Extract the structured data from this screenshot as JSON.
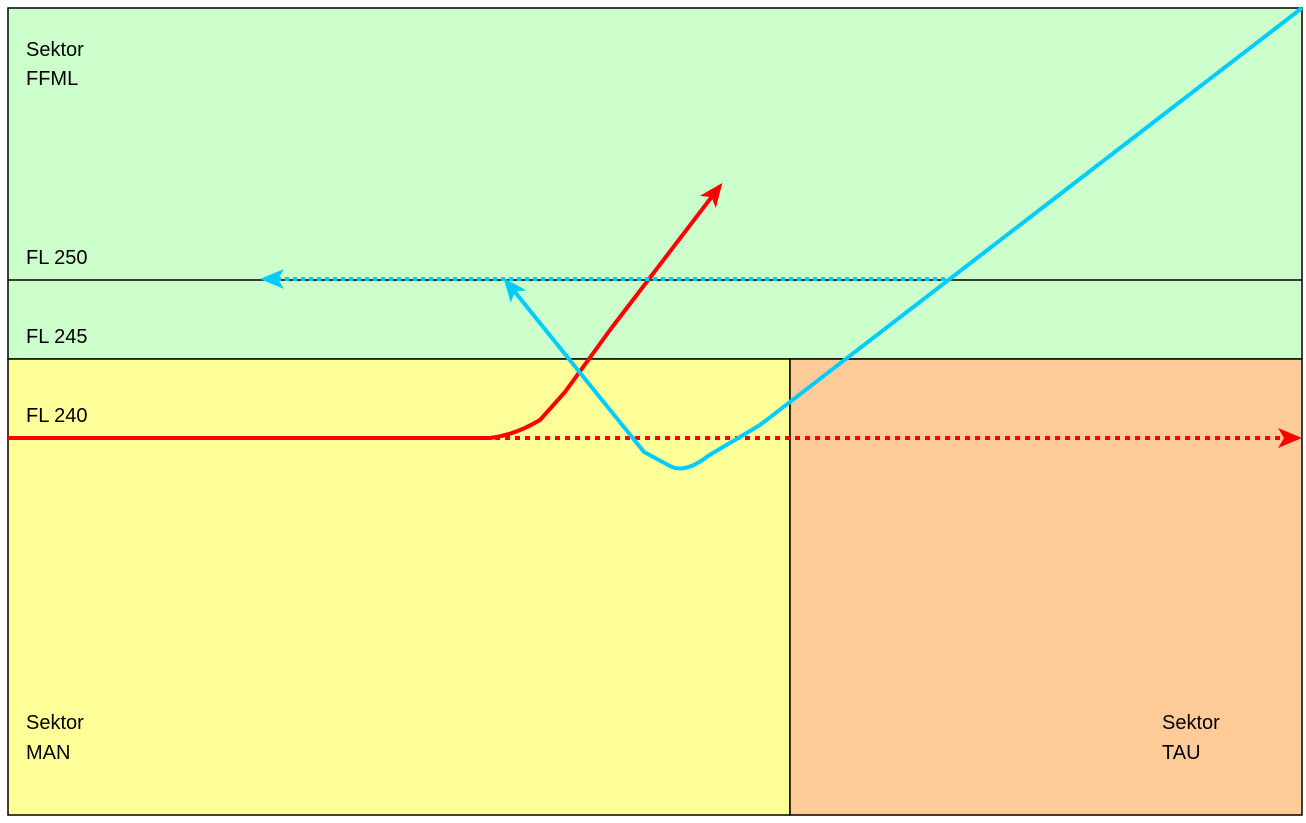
{
  "colors": {
    "upper_sector": "#ccffcc",
    "lower_left_sector": "#ffff99",
    "lower_right_sector": "#ffcc99",
    "red_track": "#ff0000",
    "cyan_track": "#00ccff",
    "border": "#000000"
  },
  "sectors": {
    "ffml": {
      "line1": "Sektor",
      "line2": "FFML"
    },
    "man": {
      "line1": "Sektor",
      "line2": "MAN"
    },
    "tau": {
      "line1": "Sektor",
      "line2": "TAU"
    }
  },
  "flight_levels": {
    "fl250": "FL 250",
    "fl245": "FL 245",
    "fl240": "FL 240"
  }
}
